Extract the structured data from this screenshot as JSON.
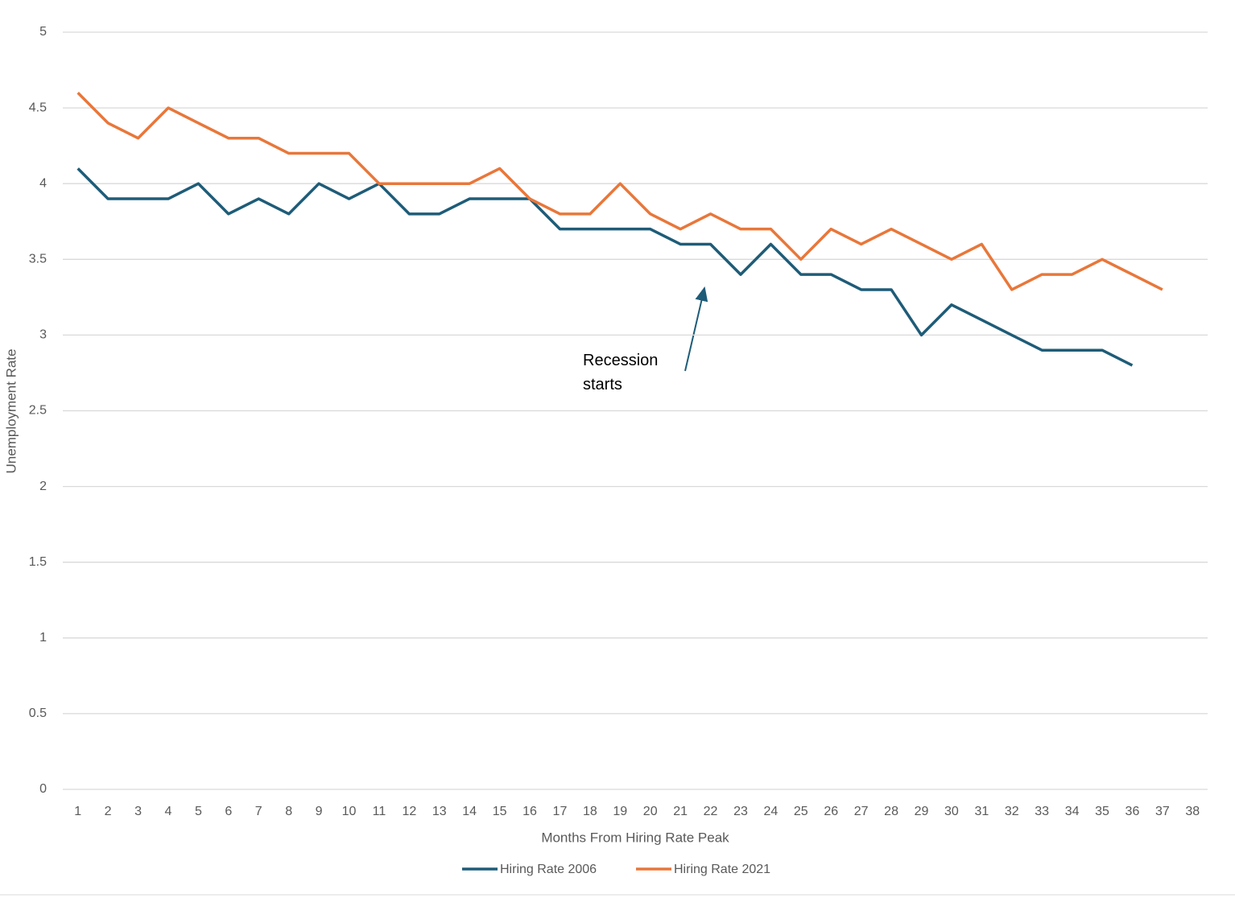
{
  "chart_data": {
    "type": "line",
    "xlabel": "Months From Hiring Rate Peak",
    "ylabel": "Unemployment Rate",
    "annotation": "Recession starts",
    "categories": [
      1,
      2,
      3,
      4,
      5,
      6,
      7,
      8,
      9,
      10,
      11,
      12,
      13,
      14,
      15,
      16,
      17,
      18,
      19,
      20,
      21,
      22,
      23,
      24,
      25,
      26,
      27,
      28,
      29,
      30,
      31,
      32,
      33,
      34,
      35,
      36,
      37,
      38
    ],
    "series": [
      {
        "name": "Hiring Rate 2006",
        "color": "#1e5c78",
        "values": [
          4.1,
          3.9,
          3.9,
          3.9,
          4.0,
          3.8,
          3.9,
          3.8,
          4.0,
          3.9,
          4.0,
          3.8,
          3.8,
          3.9,
          3.9,
          3.9,
          3.7,
          3.7,
          3.7,
          3.7,
          3.6,
          3.6,
          3.4,
          3.6,
          3.4,
          3.4,
          3.3,
          3.3,
          3.0,
          3.2,
          3.1,
          3.0,
          2.9,
          2.9,
          2.9,
          2.8,
          null,
          null
        ]
      },
      {
        "name": "Hiring Rate 2021",
        "color": "#e8773a",
        "values": [
          4.6,
          4.4,
          4.3,
          4.5,
          4.4,
          4.3,
          4.3,
          4.2,
          4.2,
          4.2,
          4.0,
          4.0,
          4.0,
          4.0,
          4.1,
          3.9,
          3.8,
          3.8,
          4.0,
          3.8,
          3.7,
          3.8,
          3.7,
          3.7,
          3.5,
          3.7,
          3.6,
          3.7,
          3.6,
          3.5,
          3.6,
          3.3,
          3.4,
          3.4,
          3.5,
          3.4,
          3.3,
          null
        ]
      }
    ],
    "ylim": [
      0,
      5
    ],
    "yticks": [
      0,
      0.5,
      1,
      1.5,
      2,
      2.5,
      3,
      3.5,
      4,
      4.5,
      5
    ],
    "grid": true,
    "legend": "bottom"
  }
}
